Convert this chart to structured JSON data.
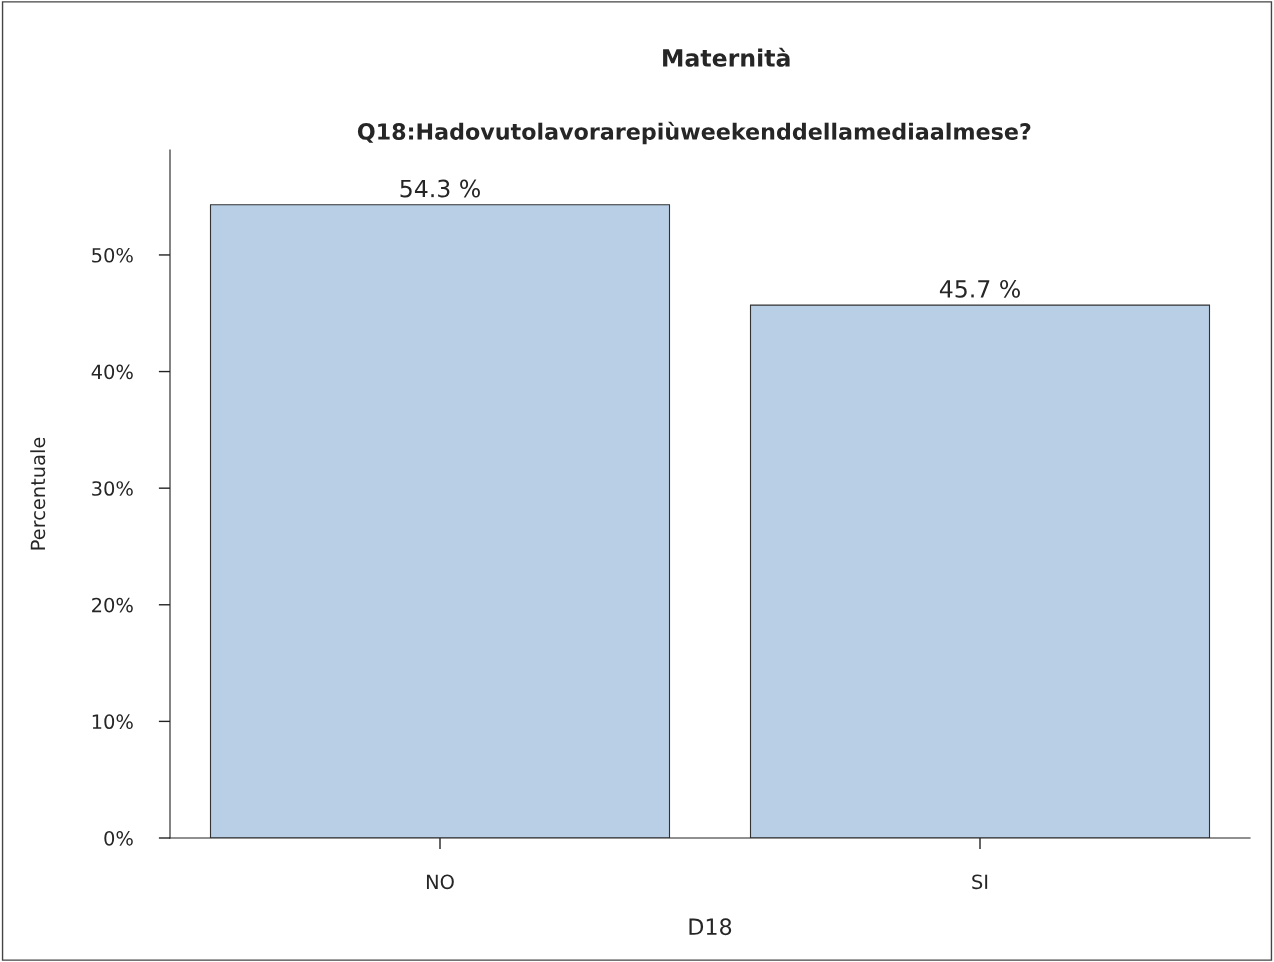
{
  "chart_data": {
    "type": "bar",
    "title": "Maternità",
    "subtitle": "Q18:Hadovutolavorarepiùweekenddellamediaalmese?",
    "xlabel": "D18",
    "ylabel": "Percentuale",
    "categories": [
      "NO",
      "SI"
    ],
    "values": [
      54.3,
      45.7
    ],
    "color": "#b9cfe6",
    "value_labels": [
      "54.3 %",
      "45.7 %"
    ],
    "ylim": [
      0,
      59
    ],
    "yticks": [
      {
        "value": 0,
        "label": "0%"
      },
      {
        "value": 10,
        "label": "10%"
      },
      {
        "value": 20,
        "label": "20%"
      },
      {
        "value": 30,
        "label": "30%"
      },
      {
        "value": 40,
        "label": "40%"
      },
      {
        "value": 50,
        "label": "50%"
      }
    ],
    "grid": false
  }
}
